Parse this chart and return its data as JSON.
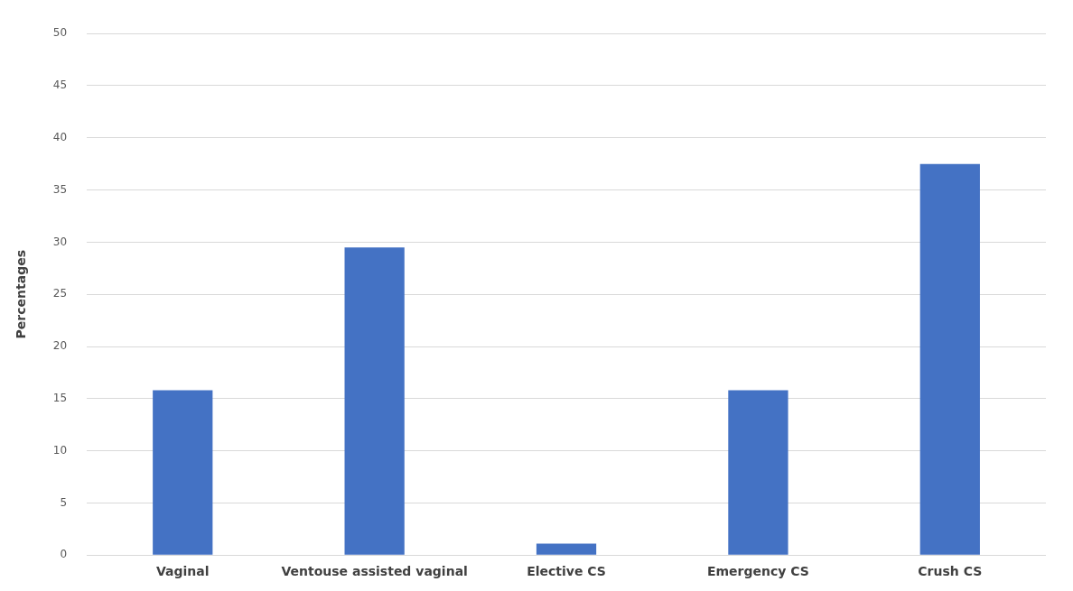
{
  "chart_data": {
    "type": "bar",
    "ylabel": "Percentages",
    "categories": [
      "Vaginal",
      "Ventouse assisted vaginal",
      "Elective CS",
      "Emergency CS",
      "Crush CS"
    ],
    "values": [
      15.8,
      29.5,
      1.1,
      15.8,
      37.5
    ],
    "color": "#4472c4",
    "ylim": [
      0,
      50
    ],
    "yticks": [
      0,
      5,
      10,
      15,
      20,
      25,
      30,
      35,
      40,
      45,
      50
    ],
    "grid": "y"
  }
}
